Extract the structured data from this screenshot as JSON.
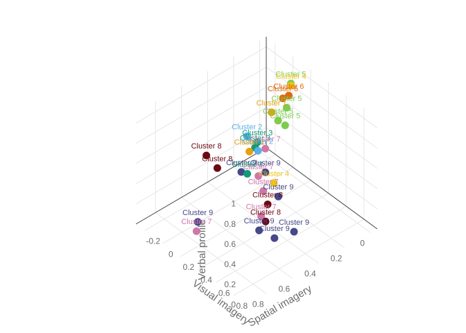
{
  "chart_data": {
    "type": "scatter3d",
    "axes": {
      "x": {
        "title": "Visual imagery",
        "ticks": [
          -0.2,
          0,
          0.2,
          0.4,
          0.6,
          0.8
        ],
        "range": [
          -0.3,
          0.95
        ]
      },
      "y": {
        "title": "Spatial imagery",
        "ticks": [
          0,
          0.2,
          0.4,
          0.6,
          0.8
        ],
        "range": [
          -0.05,
          0.95
        ]
      },
      "z": {
        "title": "Verbal profile",
        "ticks": [
          0,
          0.2,
          0.4,
          0.6,
          0.8,
          1
        ],
        "range": [
          0,
          1.1
        ]
      }
    },
    "grid": true,
    "legend": "none",
    "colors": {
      "Cluster 1": "#e6a010",
      "Cluster 2": "#5ab0e6",
      "Cluster 3": "#119a78",
      "Cluster 4": "#f0c419",
      "Cluster 5": "#7ecb4e",
      "Cluster 6": "#dd6a10",
      "Cluster 7": "#cf77a8",
      "Cluster 8": "#6b0812",
      "Cluster 9": "#454889"
    },
    "points": [
      {
        "label": "Cluster 4",
        "x": 0.2,
        "y": 0.1,
        "z": 1.05
      },
      {
        "label": "Cluster 6",
        "x": 0.18,
        "y": 0.15,
        "z": 0.95
      },
      {
        "label": "Cluster 1",
        "x": 0.2,
        "y": 0.25,
        "z": 0.9
      },
      {
        "label": "Cluster 5",
        "x": 0.05,
        "y": 0.0,
        "z": 0.9
      },
      {
        "label": "Cluster 6",
        "x": 0.1,
        "y": 0.05,
        "z": 0.85
      },
      {
        "label": "Cluster 5",
        "x": 0.15,
        "y": 0.1,
        "z": 0.8
      },
      {
        "label": "Cluster 5",
        "x": 0.2,
        "y": 0.2,
        "z": 0.78
      },
      {
        "label": "Cluster 5",
        "x": 0.25,
        "y": 0.18,
        "z": 0.75
      },
      {
        "label": "Cluster 8",
        "x": 0.2,
        "y": 0.75,
        "z": 0.85
      },
      {
        "label": "Cluster 8",
        "x": 0.25,
        "y": 0.7,
        "z": 0.72
      },
      {
        "label": "Cluster 7",
        "x": 0.35,
        "y": 0.4,
        "z": 0.75
      },
      {
        "label": "Cluster 9",
        "x": 0.3,
        "y": 0.55,
        "z": 0.6
      },
      {
        "label": "Cluster 9",
        "x": 0.38,
        "y": 0.42,
        "z": 0.55
      },
      {
        "label": "Cluster 7",
        "x": 0.36,
        "y": 0.46,
        "z": 0.53
      },
      {
        "label": "Cluster 2",
        "x": -0.15,
        "y": 0.2,
        "z": 0.4
      },
      {
        "label": "Cluster 1",
        "x": -0.05,
        "y": 0.25,
        "z": 0.35
      },
      {
        "label": "Cluster 3",
        "x": -0.03,
        "y": 0.22,
        "z": 0.38
      },
      {
        "label": "Cluster 2",
        "x": -0.1,
        "y": 0.15,
        "z": 0.25
      },
      {
        "label": "Cluster 3",
        "x": -0.15,
        "y": 0.12,
        "z": 0.28
      },
      {
        "label": "Cluster 3",
        "x": 0.0,
        "y": 0.3,
        "z": 0.2
      },
      {
        "label": "Cluster 4",
        "x": 0.3,
        "y": 0.3,
        "z": 0.3
      },
      {
        "label": "Cluster 9",
        "x": 0.35,
        "y": 0.3,
        "z": 0.2
      },
      {
        "label": "Cluster 7",
        "x": 0.4,
        "y": 0.45,
        "z": 0.4
      },
      {
        "label": "Cluster 8",
        "x": 0.45,
        "y": 0.45,
        "z": 0.3
      },
      {
        "label": "Cluster 7",
        "x": 0.45,
        "y": 0.5,
        "z": 0.22
      },
      {
        "label": "Cluster 8",
        "x": 0.5,
        "y": 0.5,
        "z": 0.2
      },
      {
        "label": "Cluster 9",
        "x": 0.5,
        "y": 0.55,
        "z": 0.15
      },
      {
        "label": "Cluster 9",
        "x": 0.6,
        "y": 0.5,
        "z": 0.1
      },
      {
        "label": "Cluster 9",
        "x": 0.6,
        "y": 0.35,
        "z": 0.05
      },
      {
        "label": "Cluster 9",
        "x": 0.25,
        "y": 0.85,
        "z": 0.3
      },
      {
        "label": "Cluster 7",
        "x": 0.28,
        "y": 0.88,
        "z": 0.25
      }
    ]
  }
}
